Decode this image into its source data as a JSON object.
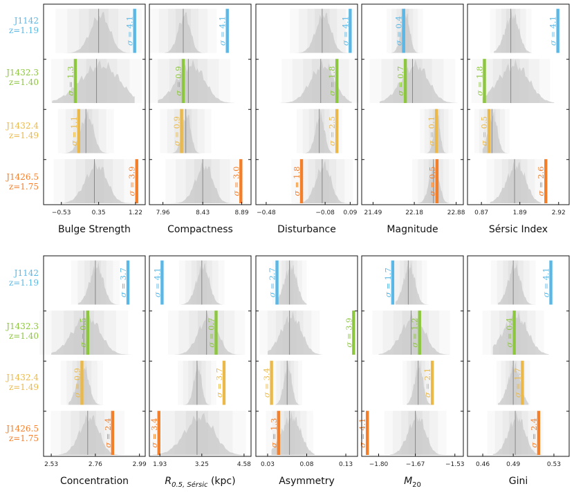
{
  "clusters": [
    {
      "id": "J1142",
      "name": "J1142",
      "z": "z=1.19",
      "color": "#5bb8e6"
    },
    {
      "id": "J1432.3",
      "name": "J1432.3",
      "z": "z=1.40",
      "color": "#8dc63f"
    },
    {
      "id": "J1432.4",
      "name": "J1432.4",
      "z": "z=1.49",
      "color": "#eab94a"
    },
    {
      "id": "J1426.5",
      "name": "J1426.5",
      "z": "z=1.75",
      "color": "#f47f2b"
    }
  ],
  "chart_data": [
    {
      "type": "distribution",
      "key": "bulge",
      "title": "Bulge Strength",
      "xlim": [
        -0.95,
        1.45
      ],
      "ticks": [
        -0.53,
        0.35,
        1.22
      ],
      "tick_labels": [
        "−0.53",
        "0.35",
        "1.22"
      ],
      "series": [
        {
          "cluster": "J1142",
          "sigma": "4.1",
          "line": 1.2,
          "center": 0.35,
          "spread": 0.22,
          "dist": [
            -0.6,
            1.25
          ]
        },
        {
          "cluster": "J1432.3",
          "sigma": "1.3",
          "line": -0.2,
          "center": 0.3,
          "spread": 0.45,
          "dist": [
            -0.75,
            1.2
          ]
        },
        {
          "cluster": "J1432.4",
          "sigma": "1.1",
          "line": -0.12,
          "center": 0.05,
          "spread": 0.15,
          "dist": [
            -0.6,
            0.6
          ]
        },
        {
          "cluster": "J1426.5",
          "sigma": "3.9",
          "line": 1.25,
          "center": 0.25,
          "spread": 0.25,
          "dist": [
            -0.55,
            1.2
          ]
        }
      ]
    },
    {
      "type": "distribution",
      "key": "compact",
      "title": "Compactness",
      "xlim": [
        7.8,
        9.0
      ],
      "ticks": [
        7.96,
        8.43,
        8.89
      ],
      "tick_labels": [
        "7.96",
        "8.43",
        "8.89"
      ],
      "series": [
        {
          "cluster": "J1142",
          "sigma": "4.1",
          "line": 8.72,
          "center": 8.2,
          "spread": 0.07,
          "dist": [
            7.98,
            8.7
          ]
        },
        {
          "cluster": "J1432.3",
          "sigma": "0.9",
          "line": 8.2,
          "center": 8.26,
          "spread": 0.16,
          "dist": [
            7.9,
            8.8
          ]
        },
        {
          "cluster": "J1432.4",
          "sigma": "0.9",
          "line": 8.18,
          "center": 8.23,
          "spread": 0.05,
          "dist": [
            7.95,
            8.5
          ]
        },
        {
          "cluster": "J1426.5",
          "sigma": "3.0",
          "line": 8.88,
          "center": 8.43,
          "spread": 0.1,
          "dist": [
            8.05,
            8.85
          ]
        }
      ]
    },
    {
      "type": "distribution",
      "key": "disturb",
      "title": "Disturbance",
      "xlim": [
        -0.55,
        0.14
      ],
      "ticks": [
        -0.48,
        -0.08,
        0.09
      ],
      "tick_labels": [
        "−0.48",
        "−0.08",
        "0.09"
      ],
      "series": [
        {
          "cluster": "J1142",
          "sigma": "4.1",
          "line": 0.09,
          "center": -0.1,
          "spread": 0.05,
          "dist": [
            -0.3,
            0.1
          ]
        },
        {
          "cluster": "J1432.3",
          "sigma": "1.8",
          "line": 0.0,
          "center": -0.11,
          "spread": 0.08,
          "dist": [
            -0.38,
            0.1
          ]
        },
        {
          "cluster": "J1432.4",
          "sigma": "2.5",
          "line": 0.0,
          "center": -0.12,
          "spread": 0.03,
          "dist": [
            -0.3,
            -0.02
          ]
        },
        {
          "cluster": "J1426.5",
          "sigma": "1.8",
          "line": -0.24,
          "center": -0.1,
          "spread": 0.05,
          "dist": [
            -0.3,
            0.08
          ]
        }
      ]
    },
    {
      "type": "distribution",
      "key": "mag",
      "title": "Magnitude",
      "xlim": [
        21.3,
        23.0
      ],
      "ticks": [
        21.49,
        22.18,
        22.88
      ],
      "tick_labels": [
        "21.49",
        "22.18",
        "22.88"
      ],
      "series": [
        {
          "cluster": "J1142",
          "sigma": "0.4",
          "line": 22.0,
          "center": 22.02,
          "spread": 0.07,
          "dist": [
            21.75,
            22.3
          ]
        },
        {
          "cluster": "J1432.3",
          "sigma": "0.7",
          "line": 22.03,
          "center": 22.15,
          "spread": 0.22,
          "dist": [
            21.6,
            22.9
          ]
        },
        {
          "cluster": "J1432.4",
          "sigma": "0.1",
          "line": 22.55,
          "center": 22.55,
          "spread": 0.05,
          "dist": [
            22.3,
            22.8
          ]
        },
        {
          "cluster": "J1426.5",
          "sigma": "0.5",
          "line": 22.56,
          "center": 22.5,
          "spread": 0.08,
          "dist": [
            22.2,
            22.85
          ]
        }
      ]
    },
    {
      "type": "distribution",
      "key": "sersic",
      "title": "Sérsic Index",
      "xlim": [
        0.5,
        3.2
      ],
      "ticks": [
        0.87,
        1.89,
        2.92
      ],
      "tick_labels": [
        "0.87",
        "1.89",
        "2.92"
      ],
      "series": [
        {
          "cluster": "J1142",
          "sigma": "4.1",
          "line": 2.9,
          "center": 1.65,
          "spread": 0.18,
          "dist": [
            1.2,
            2.2
          ]
        },
        {
          "cluster": "J1432.3",
          "sigma": "1.8",
          "line": 0.95,
          "center": 1.65,
          "spread": 0.4,
          "dist": [
            0.9,
            2.8
          ]
        },
        {
          "cluster": "J1432.4",
          "sigma": "0.5",
          "line": 1.07,
          "center": 1.15,
          "spread": 0.12,
          "dist": [
            0.9,
            1.75
          ]
        },
        {
          "cluster": "J1426.5",
          "sigma": "2.6",
          "line": 2.58,
          "center": 1.75,
          "spread": 0.25,
          "dist": [
            1.1,
            2.45
          ]
        }
      ]
    },
    {
      "type": "distribution",
      "key": "conc",
      "title": "Concentration",
      "xlim": [
        2.49,
        3.02
      ],
      "ticks": [
        2.53,
        2.76,
        2.99
      ],
      "tick_labels": [
        "2.53",
        "2.76",
        "2.99"
      ],
      "series": [
        {
          "cluster": "J1142",
          "sigma": "3.7",
          "line": 2.93,
          "center": 2.76,
          "spread": 0.035,
          "dist": [
            2.67,
            2.9
          ]
        },
        {
          "cluster": "J1432.3",
          "sigma": "0.5",
          "line": 2.72,
          "center": 2.7,
          "spread": 0.07,
          "dist": [
            2.53,
            2.95
          ]
        },
        {
          "cluster": "J1432.4",
          "sigma": "0.9",
          "line": 2.69,
          "center": 2.69,
          "spread": 0.03,
          "dist": [
            2.62,
            2.82
          ]
        },
        {
          "cluster": "J1426.5",
          "sigma": "2.4",
          "line": 2.85,
          "center": 2.72,
          "spread": 0.05,
          "dist": [
            2.55,
            2.9
          ]
        }
      ]
    },
    {
      "type": "distribution",
      "key": "reff",
      "title": "R0.5, Sérsic (kpc)",
      "title_main": "R",
      "title_sub": "0.5, Sérsic",
      "title_unit": " (kpc)",
      "xlim": [
        1.6,
        4.8
      ],
      "ticks": [
        1.93,
        3.25,
        4.58
      ],
      "tick_labels": [
        "1.93",
        "3.25",
        "4.58"
      ],
      "series": [
        {
          "cluster": "J1142",
          "sigma": "4.1",
          "line": 2.0,
          "center": 3.25,
          "spread": 0.2,
          "dist": [
            2.6,
            3.9
          ]
        },
        {
          "cluster": "J1432.3",
          "sigma": "0.7",
          "line": 3.7,
          "center": 3.4,
          "spread": 0.3,
          "dist": [
            2.4,
            4.6
          ]
        },
        {
          "cluster": "J1432.4",
          "sigma": "3.7",
          "line": 3.95,
          "center": 3.1,
          "spread": 0.12,
          "dist": [
            2.6,
            3.7
          ]
        },
        {
          "cluster": "J1426.5",
          "sigma": "3.4",
          "line": 1.9,
          "center": 3.1,
          "spread": 0.45,
          "dist": [
            1.7,
            4.5
          ]
        }
      ]
    },
    {
      "type": "distribution",
      "key": "asym",
      "title": "Asymmetry",
      "xlim": [
        0.015,
        0.145
      ],
      "ticks": [
        0.03,
        0.08,
        0.13
      ],
      "tick_labels": [
        "0.03",
        "0.08",
        "0.13"
      ],
      "series": [
        {
          "cluster": "J1142",
          "sigma": "2.7",
          "line": 0.042,
          "center": 0.058,
          "spread": 0.008,
          "dist": [
            0.04,
            0.08
          ]
        },
        {
          "cluster": "J1432.3",
          "sigma": "3.9",
          "line": 0.14,
          "center": 0.058,
          "spread": 0.013,
          "dist": [
            0.03,
            0.1
          ]
        },
        {
          "cluster": "J1432.4",
          "sigma": "3.4",
          "line": 0.035,
          "center": 0.055,
          "spread": 0.005,
          "dist": [
            0.04,
            0.075
          ]
        },
        {
          "cluster": "J1426.5",
          "sigma": "1.3",
          "line": 0.044,
          "center": 0.058,
          "spread": 0.012,
          "dist": [
            0.035,
            0.09
          ]
        }
      ]
    },
    {
      "type": "distribution",
      "key": "m20",
      "title": "M20",
      "title_main": "M",
      "title_sub": "20",
      "xlim": [
        -1.86,
        -1.5
      ],
      "ticks": [
        -1.8,
        -1.67,
        -1.53
      ],
      "tick_labels": [
        "−1.80",
        "−1.67",
        "−1.53"
      ],
      "series": [
        {
          "cluster": "J1142",
          "sigma": "1.7",
          "line": -1.75,
          "center": -1.695,
          "spread": 0.02,
          "dist": [
            -1.74,
            -1.62
          ]
        },
        {
          "cluster": "J1432.3",
          "sigma": "1.2",
          "line": -1.655,
          "center": -1.685,
          "spread": 0.04,
          "dist": [
            -1.8,
            -1.55
          ]
        },
        {
          "cluster": "J1432.4",
          "sigma": "2.1",
          "line": -1.61,
          "center": -1.66,
          "spread": 0.015,
          "dist": [
            -1.7,
            -1.6
          ]
        },
        {
          "cluster": "J1426.5",
          "sigma": "4.1",
          "line": -1.84,
          "center": -1.67,
          "spread": 0.03,
          "dist": [
            -1.76,
            -1.56
          ]
        }
      ]
    },
    {
      "type": "distribution",
      "key": "gini",
      "title": "Gini",
      "xlim": [
        0.445,
        0.545
      ],
      "ticks": [
        0.46,
        0.49,
        0.53
      ],
      "tick_labels": [
        "0.46",
        "0.49",
        "0.53"
      ],
      "series": [
        {
          "cluster": "J1142",
          "sigma": "4.1",
          "line": 0.527,
          "center": 0.49,
          "spread": 0.006,
          "dist": [
            0.475,
            0.515
          ]
        },
        {
          "cluster": "J1432.3",
          "sigma": "0.4",
          "line": 0.491,
          "center": 0.49,
          "spread": 0.012,
          "dist": [
            0.47,
            0.525
          ]
        },
        {
          "cluster": "J1432.4",
          "sigma": "1.7",
          "line": 0.499,
          "center": 0.49,
          "spread": 0.006,
          "dist": [
            0.475,
            0.505
          ]
        },
        {
          "cluster": "J1426.5",
          "sigma": "2.4",
          "line": 0.515,
          "center": 0.492,
          "spread": 0.008,
          "dist": [
            0.47,
            0.52
          ]
        }
      ]
    }
  ]
}
